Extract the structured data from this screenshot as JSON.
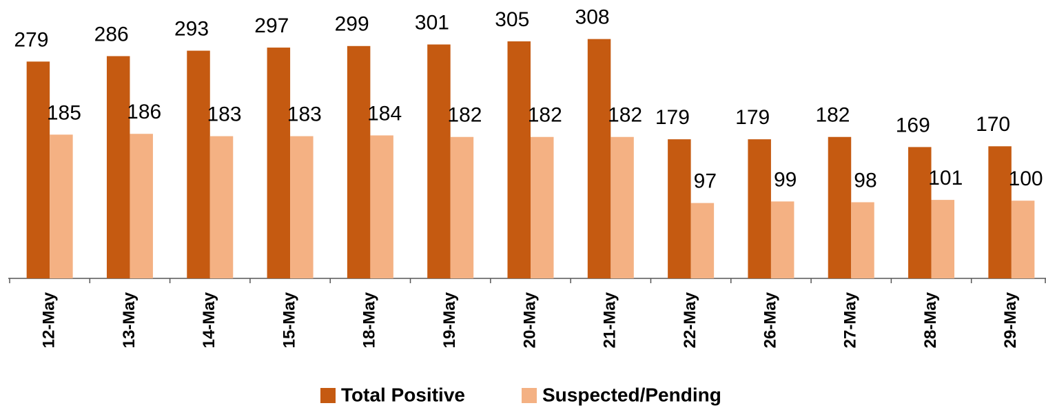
{
  "chart_data": {
    "type": "bar",
    "categories": [
      "12-May",
      "13-May",
      "14-May",
      "15-May",
      "18-May",
      "19-May",
      "20-May",
      "21-May",
      "22-May",
      "26-May",
      "27-May",
      "28-May",
      "29-May"
    ],
    "series": [
      {
        "name": "Total Positive",
        "color": "#c55a11",
        "values": [
          279,
          286,
          293,
          297,
          299,
          301,
          305,
          308,
          179,
          179,
          182,
          169,
          170
        ]
      },
      {
        "name": "Suspected/Pending",
        "color": "#f4b183",
        "values": [
          185,
          186,
          183,
          183,
          184,
          182,
          182,
          182,
          97,
          99,
          98,
          101,
          100
        ]
      }
    ],
    "ylim": [
      0,
      360
    ]
  }
}
